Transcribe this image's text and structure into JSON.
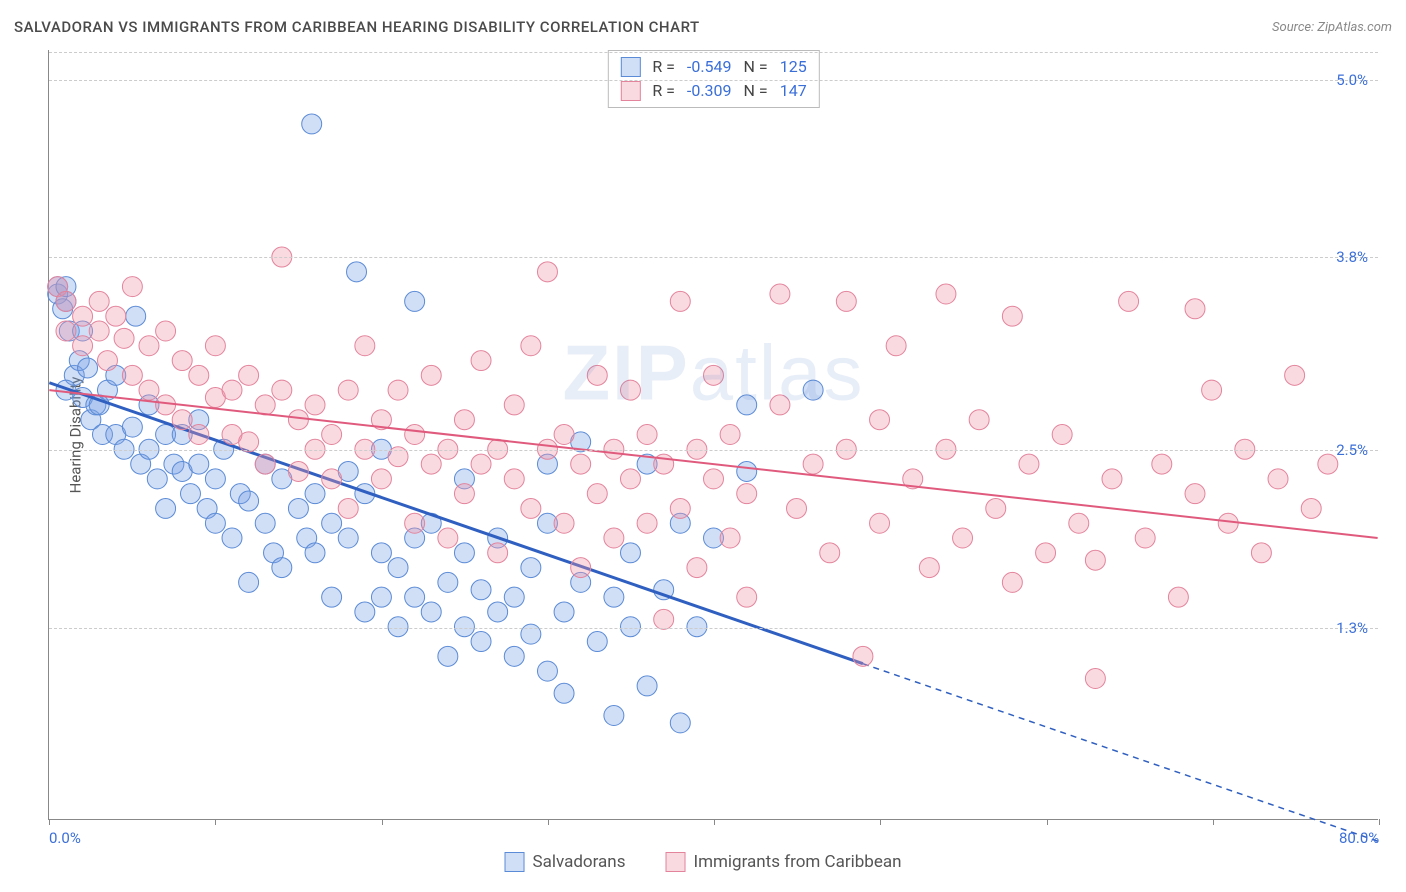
{
  "header": {
    "title": "SALVADORAN VS IMMIGRANTS FROM CARIBBEAN HEARING DISABILITY CORRELATION CHART",
    "source": "Source: ZipAtlas.com"
  },
  "chart": {
    "type": "scatter",
    "y_axis_title": "Hearing Disability",
    "watermark": "ZIPatlas",
    "xlim": [
      0,
      80
    ],
    "ylim": [
      0,
      5.2
    ],
    "x_ticks": [
      0,
      10,
      20,
      30,
      40,
      50,
      60,
      70,
      80
    ],
    "x_tick_labels_shown": {
      "0": "0.0%",
      "80": "80.0%"
    },
    "y_ticks": [
      1.3,
      2.5,
      3.8,
      5.0
    ],
    "y_tick_labels": [
      "1.3%",
      "2.5%",
      "3.8%",
      "5.0%"
    ],
    "grid_color": "#cccccc",
    "axis_color": "#888888",
    "background_color": "#ffffff",
    "label_color": "#3b6fd8",
    "point_radius": 10,
    "series": [
      {
        "name": "Salvadorans",
        "fill": "rgba(120,160,230,0.35)",
        "stroke": "#5b8bd6",
        "trend_stroke": "#2f5fc0",
        "trend_width": 3,
        "R": "-0.549",
        "N": "125",
        "trend": {
          "x1": 0,
          "y1": 2.95,
          "x2": 49,
          "y2": 1.05,
          "dash_x2": 80,
          "dash_y2": -0.15
        },
        "points": [
          [
            0.5,
            3.55
          ],
          [
            0.8,
            3.45
          ],
          [
            1.0,
            3.5
          ],
          [
            1.2,
            3.3
          ],
          [
            1.5,
            3.0
          ],
          [
            1.0,
            2.9
          ],
          [
            1.8,
            3.1
          ],
          [
            2.0,
            2.85
          ],
          [
            2.3,
            3.05
          ],
          [
            2.5,
            2.7
          ],
          [
            2.0,
            3.3
          ],
          [
            0.5,
            3.6
          ],
          [
            1.0,
            3.6
          ],
          [
            2.8,
            2.8
          ],
          [
            3.0,
            2.8
          ],
          [
            3.2,
            2.6
          ],
          [
            3.5,
            2.9
          ],
          [
            4.0,
            2.6
          ],
          [
            4.5,
            2.5
          ],
          [
            4.0,
            3.0
          ],
          [
            5.0,
            2.65
          ],
          [
            5.2,
            3.4
          ],
          [
            5.5,
            2.4
          ],
          [
            6.0,
            2.5
          ],
          [
            6.0,
            2.8
          ],
          [
            6.5,
            2.3
          ],
          [
            7.0,
            2.6
          ],
          [
            7.0,
            2.1
          ],
          [
            7.5,
            2.4
          ],
          [
            8.0,
            2.35
          ],
          [
            8.0,
            2.6
          ],
          [
            8.5,
            2.2
          ],
          [
            9.0,
            2.4
          ],
          [
            9.0,
            2.7
          ],
          [
            9.5,
            2.1
          ],
          [
            10.0,
            2.3
          ],
          [
            10.0,
            2.0
          ],
          [
            10.5,
            2.5
          ],
          [
            11.0,
            1.9
          ],
          [
            11.5,
            2.2
          ],
          [
            12.0,
            2.15
          ],
          [
            12.0,
            1.6
          ],
          [
            13.0,
            2.0
          ],
          [
            13.0,
            2.4
          ],
          [
            13.5,
            1.8
          ],
          [
            14.0,
            2.3
          ],
          [
            14.0,
            1.7
          ],
          [
            15.0,
            2.1
          ],
          [
            15.8,
            4.7
          ],
          [
            15.5,
            1.9
          ],
          [
            16.0,
            1.8
          ],
          [
            16.0,
            2.2
          ],
          [
            17.0,
            2.0
          ],
          [
            17.0,
            1.5
          ],
          [
            18.0,
            2.35
          ],
          [
            18.0,
            1.9
          ],
          [
            18.5,
            3.7
          ],
          [
            19.0,
            1.4
          ],
          [
            19.0,
            2.2
          ],
          [
            20.0,
            1.8
          ],
          [
            20.0,
            1.5
          ],
          [
            20.0,
            2.5
          ],
          [
            21.0,
            1.7
          ],
          [
            21.0,
            1.3
          ],
          [
            22.0,
            1.9
          ],
          [
            22.0,
            1.5
          ],
          [
            22.0,
            3.5
          ],
          [
            23.0,
            2.0
          ],
          [
            23.0,
            1.4
          ],
          [
            24.0,
            1.1
          ],
          [
            24.0,
            1.6
          ],
          [
            25.0,
            1.3
          ],
          [
            25.0,
            1.8
          ],
          [
            25.0,
            2.3
          ],
          [
            26.0,
            1.2
          ],
          [
            26.0,
            1.55
          ],
          [
            27.0,
            1.4
          ],
          [
            27.0,
            1.9
          ],
          [
            28.0,
            1.1
          ],
          [
            28.0,
            1.5
          ],
          [
            29.0,
            1.7
          ],
          [
            29.0,
            1.25
          ],
          [
            30.0,
            2.0
          ],
          [
            30.0,
            1.0
          ],
          [
            30.0,
            2.4
          ],
          [
            31.0,
            1.4
          ],
          [
            31.0,
            0.85
          ],
          [
            32.0,
            1.6
          ],
          [
            32.0,
            2.55
          ],
          [
            33.0,
            1.2
          ],
          [
            34.0,
            1.5
          ],
          [
            34.0,
            0.7
          ],
          [
            35.0,
            1.8
          ],
          [
            35.0,
            1.3
          ],
          [
            36.0,
            2.4
          ],
          [
            36.0,
            0.9
          ],
          [
            37.0,
            1.55
          ],
          [
            38.0,
            0.65
          ],
          [
            38.0,
            2.0
          ],
          [
            39.0,
            1.3
          ],
          [
            40.0,
            1.9
          ],
          [
            42.0,
            2.8
          ],
          [
            42.0,
            2.35
          ],
          [
            46.0,
            2.9
          ]
        ]
      },
      {
        "name": "Immigrants from Caribbean",
        "fill": "rgba(240,150,170,0.35)",
        "stroke": "#e3849c",
        "trend_stroke": "#e05a7d",
        "trend_width": 2,
        "R": "-0.309",
        "N": "147",
        "trend": {
          "x1": 0,
          "y1": 2.9,
          "x2": 80,
          "y2": 1.9
        },
        "points": [
          [
            0.5,
            3.6
          ],
          [
            1.0,
            3.5
          ],
          [
            1.0,
            3.3
          ],
          [
            2.0,
            3.4
          ],
          [
            2.0,
            3.2
          ],
          [
            3.0,
            3.5
          ],
          [
            3.0,
            3.3
          ],
          [
            3.5,
            3.1
          ],
          [
            4.0,
            3.4
          ],
          [
            4.5,
            3.25
          ],
          [
            5.0,
            3.6
          ],
          [
            5.0,
            3.0
          ],
          [
            6.0,
            3.2
          ],
          [
            6.0,
            2.9
          ],
          [
            7.0,
            3.3
          ],
          [
            7.0,
            2.8
          ],
          [
            8.0,
            3.1
          ],
          [
            8.0,
            2.7
          ],
          [
            9.0,
            3.0
          ],
          [
            9.0,
            2.6
          ],
          [
            10.0,
            3.2
          ],
          [
            10.0,
            2.85
          ],
          [
            11.0,
            2.9
          ],
          [
            11.0,
            2.6
          ],
          [
            12.0,
            3.0
          ],
          [
            12.0,
            2.55
          ],
          [
            13.0,
            2.8
          ],
          [
            13.0,
            2.4
          ],
          [
            14.0,
            2.9
          ],
          [
            14.0,
            3.8
          ],
          [
            15.0,
            2.7
          ],
          [
            15.0,
            2.35
          ],
          [
            16.0,
            2.8
          ],
          [
            16.0,
            2.5
          ],
          [
            17.0,
            2.6
          ],
          [
            17.0,
            2.3
          ],
          [
            18.0,
            2.9
          ],
          [
            18.0,
            2.1
          ],
          [
            19.0,
            2.5
          ],
          [
            19.0,
            3.2
          ],
          [
            20.0,
            2.7
          ],
          [
            20.0,
            2.3
          ],
          [
            21.0,
            2.45
          ],
          [
            21.0,
            2.9
          ],
          [
            22.0,
            2.6
          ],
          [
            22.0,
            2.0
          ],
          [
            23.0,
            3.0
          ],
          [
            23.0,
            2.4
          ],
          [
            24.0,
            2.5
          ],
          [
            24.0,
            1.9
          ],
          [
            25.0,
            2.7
          ],
          [
            25.0,
            2.2
          ],
          [
            26.0,
            2.4
          ],
          [
            26.0,
            3.1
          ],
          [
            27.0,
            2.5
          ],
          [
            27.0,
            1.8
          ],
          [
            28.0,
            2.8
          ],
          [
            28.0,
            2.3
          ],
          [
            29.0,
            2.1
          ],
          [
            29.0,
            3.2
          ],
          [
            30.0,
            2.5
          ],
          [
            30.0,
            3.7
          ],
          [
            31.0,
            2.0
          ],
          [
            31.0,
            2.6
          ],
          [
            32.0,
            2.4
          ],
          [
            32.0,
            1.7
          ],
          [
            33.0,
            3.0
          ],
          [
            33.0,
            2.2
          ],
          [
            34.0,
            2.5
          ],
          [
            34.0,
            1.9
          ],
          [
            35.0,
            2.3
          ],
          [
            35.0,
            2.9
          ],
          [
            36.0,
            2.0
          ],
          [
            36.0,
            2.6
          ],
          [
            37.0,
            2.4
          ],
          [
            37.0,
            1.35
          ],
          [
            38.0,
            3.5
          ],
          [
            38.0,
            2.1
          ],
          [
            39.0,
            2.5
          ],
          [
            39.0,
            1.7
          ],
          [
            40.0,
            2.3
          ],
          [
            40.0,
            3.0
          ],
          [
            41.0,
            1.9
          ],
          [
            41.0,
            2.6
          ],
          [
            42.0,
            2.2
          ],
          [
            42.0,
            1.5
          ],
          [
            44.0,
            2.8
          ],
          [
            44.0,
            3.55
          ],
          [
            45.0,
            2.1
          ],
          [
            46.0,
            2.4
          ],
          [
            47.0,
            1.8
          ],
          [
            48.0,
            2.5
          ],
          [
            48.0,
            3.5
          ],
          [
            49.0,
            1.1
          ],
          [
            50.0,
            2.7
          ],
          [
            50.0,
            2.0
          ],
          [
            51.0,
            3.2
          ],
          [
            52.0,
            2.3
          ],
          [
            53.0,
            1.7
          ],
          [
            54.0,
            2.5
          ],
          [
            54.0,
            3.55
          ],
          [
            55.0,
            1.9
          ],
          [
            56.0,
            2.7
          ],
          [
            57.0,
            2.1
          ],
          [
            58.0,
            1.6
          ],
          [
            58.0,
            3.4
          ],
          [
            59.0,
            2.4
          ],
          [
            60.0,
            1.8
          ],
          [
            61.0,
            2.6
          ],
          [
            62.0,
            2.0
          ],
          [
            63.0,
            0.95
          ],
          [
            63.0,
            1.75
          ],
          [
            64.0,
            2.3
          ],
          [
            65.0,
            3.5
          ],
          [
            66.0,
            1.9
          ],
          [
            67.0,
            2.4
          ],
          [
            68.0,
            1.5
          ],
          [
            69.0,
            2.2
          ],
          [
            69.0,
            3.45
          ],
          [
            70.0,
            2.9
          ],
          [
            71.0,
            2.0
          ],
          [
            72.0,
            2.5
          ],
          [
            73.0,
            1.8
          ],
          [
            74.0,
            2.3
          ],
          [
            75.0,
            3.0
          ],
          [
            76.0,
            2.1
          ],
          [
            77.0,
            2.4
          ]
        ]
      }
    ]
  },
  "bottom_legend": {
    "items": [
      "Salvadorans",
      "Immigrants from Caribbean"
    ]
  }
}
